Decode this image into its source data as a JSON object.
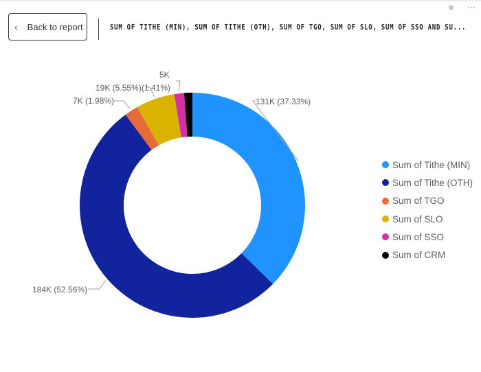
{
  "header": {
    "back_label": "Back to report",
    "title": "SUM OF TITHE (MIN), SUM OF TITHE (OTH), SUM OF TGO, SUM OF SLO, SUM OF SSO AND SU...",
    "filter_icon": "filter-icon",
    "more_icon": "more-options-icon"
  },
  "chart_data": {
    "type": "pie",
    "subtype": "donut",
    "legend_position": "right",
    "categories": [
      "Sum of Tithe (MIN)",
      "Sum of Tithe (OTH)",
      "Sum of TGO",
      "Sum of SLO",
      "Sum of SSO",
      "Sum of CRM"
    ],
    "colors": [
      "#1f93ff",
      "#12239e",
      "#e66c37",
      "#d9b300",
      "#d42ea8",
      "#000000"
    ],
    "percent": [
      37.33,
      52.56,
      1.98,
      5.55,
      1.41,
      1.17
    ],
    "data_labels": [
      "131K (37.33%)",
      "184K (52.56%)",
      "7K (1.98%)",
      "19K (5.55%)",
      "5K",
      "(1.41%)"
    ]
  }
}
